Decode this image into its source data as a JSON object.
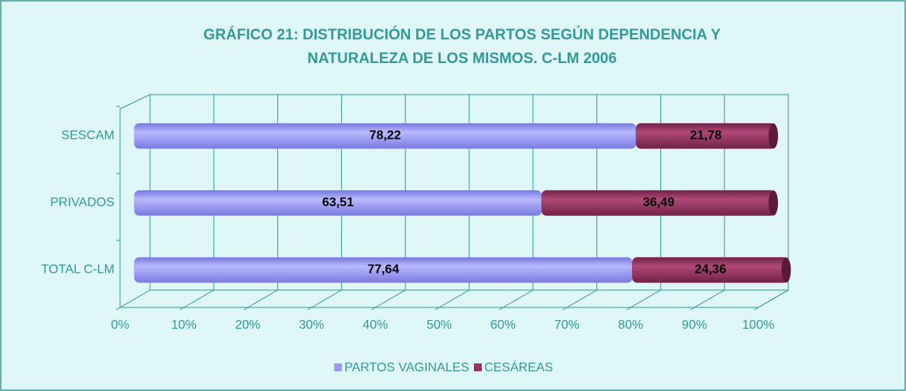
{
  "chart_data": {
    "type": "bar",
    "orientation": "horizontal",
    "stacked": true,
    "title": "GRÁFICO 21: DISTRIBUCIÓN DE LOS PARTOS SEGÚN DEPENDENCIA Y NATURALEZA DE LOS MISMOS. C-LM 2006",
    "categories": [
      "SESCAM",
      "PRIVADOS",
      "TOTAL C-LM"
    ],
    "series": [
      {
        "name": "PARTOS VAGINALES",
        "color": "#9999ff",
        "values": [
          78.22,
          63.51,
          77.64
        ],
        "value_labels": [
          "78,22",
          "63,51",
          "77,64"
        ]
      },
      {
        "name": "CESÁREAS",
        "color": "#993366",
        "values": [
          21.78,
          36.49,
          24.36
        ],
        "value_labels": [
          "21,78",
          "36,49",
          "24,36"
        ]
      }
    ],
    "xlim": [
      0,
      100
    ],
    "xticks": [
      {
        "value": 0,
        "label": "0%"
      },
      {
        "value": 10,
        "label": "10%"
      },
      {
        "value": 20,
        "label": "20%"
      },
      {
        "value": 30,
        "label": "30%"
      },
      {
        "value": 40,
        "label": "40%"
      },
      {
        "value": 50,
        "label": "50%"
      },
      {
        "value": 60,
        "label": "60%"
      },
      {
        "value": 70,
        "label": "70%"
      },
      {
        "value": 80,
        "label": "80%"
      },
      {
        "value": 90,
        "label": "90%"
      },
      {
        "value": 100,
        "label": "100%"
      }
    ],
    "grid": true,
    "legend": "bottom"
  }
}
